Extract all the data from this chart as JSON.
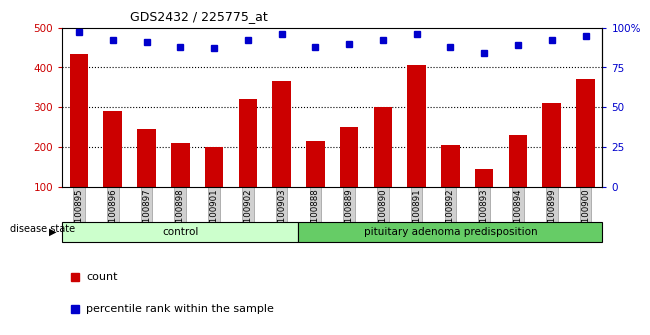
{
  "title": "GDS2432 / 225775_at",
  "categories": [
    "GSM100895",
    "GSM100896",
    "GSM100897",
    "GSM100898",
    "GSM100901",
    "GSM100902",
    "GSM100903",
    "GSM100888",
    "GSM100889",
    "GSM100890",
    "GSM100891",
    "GSM100892",
    "GSM100893",
    "GSM100894",
    "GSM100899",
    "GSM100900"
  ],
  "bar_values": [
    435,
    290,
    245,
    210,
    200,
    320,
    365,
    215,
    250,
    300,
    405,
    205,
    145,
    230,
    310,
    370
  ],
  "dot_values": [
    97,
    92,
    91,
    88,
    87,
    92,
    96,
    88,
    90,
    92,
    96,
    88,
    84,
    89,
    92,
    95
  ],
  "bar_color": "#cc0000",
  "dot_color": "#0000cc",
  "ylim_left": [
    100,
    500
  ],
  "ylim_right": [
    0,
    100
  ],
  "yticks_left": [
    100,
    200,
    300,
    400,
    500
  ],
  "yticks_right": [
    0,
    25,
    50,
    75,
    100
  ],
  "ytick_labels_right": [
    "0",
    "25",
    "50",
    "75",
    "100%"
  ],
  "group1_label": "control",
  "group2_label": "pituitary adenoma predisposition",
  "group1_count": 7,
  "group2_count": 9,
  "disease_state_label": "disease state",
  "legend_bar_label": "count",
  "legend_dot_label": "percentile rank within the sample",
  "bar_color_hex": "#cc0000",
  "dot_color_hex": "#0000cc",
  "left_axis_color": "#cc0000",
  "right_axis_color": "#0000cc",
  "bar_width": 0.55,
  "group1_color": "#ccffcc",
  "group2_color": "#66cc66",
  "grid_dotted_vals": [
    200,
    300,
    400
  ]
}
